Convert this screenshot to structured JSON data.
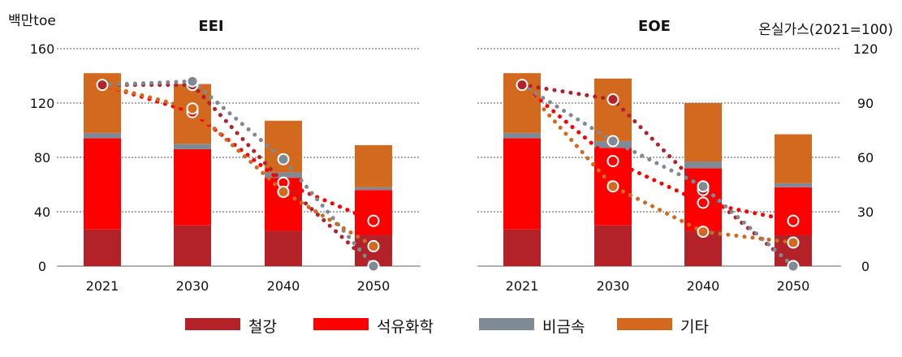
{
  "chart_data": [
    {
      "type": "bar",
      "title": "EEI",
      "stacked": true,
      "ylabel": "백만toe",
      "ylim": [
        0,
        160
      ],
      "yticks": [
        0,
        40,
        80,
        120,
        160
      ],
      "grid": true,
      "categories": [
        "2021",
        "2030",
        "2040",
        "2050"
      ],
      "series": [
        {
          "name": "철강",
          "color": "#b22228",
          "values": [
            27,
            30,
            26,
            23
          ]
        },
        {
          "name": "석유화학",
          "color": "#ff0000",
          "values": [
            67,
            56,
            39,
            33
          ]
        },
        {
          "name": "비금속",
          "color": "#7f8a95",
          "values": [
            4,
            4,
            4,
            2
          ]
        },
        {
          "name": "기타",
          "color": "#d2691e",
          "values": [
            44,
            44,
            38,
            31
          ]
        }
      ],
      "index_lines": {
        "axis": "secondary",
        "values": [
          {
            "series": "철강",
            "color": "#b22228",
            "values": [
              100,
              100,
              46,
              0
            ]
          },
          {
            "series": "석유화학",
            "color": "#ff0000",
            "values": [
              100,
              85,
              46,
              25
            ]
          },
          {
            "series": "비금속",
            "color": "#7f8a95",
            "values": [
              100,
              102,
              59,
              0
            ]
          },
          {
            "series": "기타",
            "color": "#d2691e",
            "values": [
              100,
              87,
              41,
              11
            ]
          }
        ]
      }
    },
    {
      "type": "bar",
      "title": "EOE",
      "stacked": true,
      "y2label": "온실가스(2021=100)",
      "y2lim": [
        0,
        120
      ],
      "y2ticks": [
        0,
        30,
        60,
        90,
        120
      ],
      "grid": true,
      "categories": [
        "2021",
        "2030",
        "2040",
        "2050"
      ],
      "series": [
        {
          "name": "철강",
          "color": "#b22228",
          "values": [
            27,
            30,
            26,
            23
          ]
        },
        {
          "name": "석유화학",
          "color": "#ff0000",
          "values": [
            67,
            57,
            46,
            35
          ]
        },
        {
          "name": "비금속",
          "color": "#7f8a95",
          "values": [
            4,
            5,
            5,
            3
          ]
        },
        {
          "name": "기타",
          "color": "#d2691e",
          "values": [
            44,
            46,
            43,
            36
          ]
        }
      ],
      "index_lines": {
        "axis": "secondary",
        "values": [
          {
            "series": "철강",
            "color": "#b22228",
            "values": [
              100,
              92,
              42,
              0
            ]
          },
          {
            "series": "석유화학",
            "color": "#ff0000",
            "values": [
              100,
              58,
              35,
              25
            ]
          },
          {
            "series": "비금속",
            "color": "#7f8a95",
            "values": [
              100,
              69,
              44,
              0
            ]
          },
          {
            "series": "기타",
            "color": "#d2691e",
            "values": [
              100,
              44,
              19,
              13
            ]
          }
        ]
      }
    }
  ],
  "legend": [
    {
      "label": "철강",
      "color": "#b22228"
    },
    {
      "label": "석유화학",
      "color": "#ff0000"
    },
    {
      "label": "비금속",
      "color": "#7f8a95"
    },
    {
      "label": "기타",
      "color": "#d2691e"
    }
  ]
}
